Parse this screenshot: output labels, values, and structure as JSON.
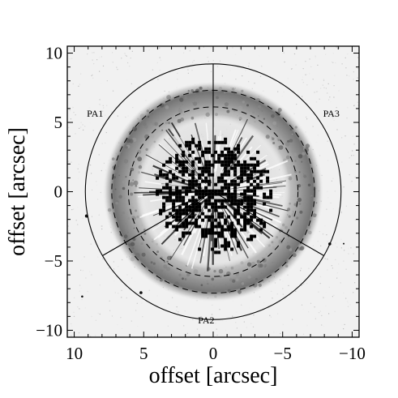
{
  "chart_data": {
    "type": "image",
    "xlabel": "offset [arcsec]",
    "ylabel": "offset [arcsec]",
    "xlim": [
      10.5,
      -10.5
    ],
    "ylim": [
      -10.5,
      10.5
    ],
    "xticks": [
      10,
      5,
      0,
      -5,
      -10
    ],
    "yticks": [
      10,
      5,
      0,
      -5,
      -10
    ],
    "xtick_labels": [
      "10",
      "5",
      "0",
      "−5",
      "−10"
    ],
    "ytick_labels": [
      "10",
      "5",
      "0",
      "−5",
      "−10"
    ],
    "outer_circle_radius": 9.2,
    "dashed_circle_radii": [
      7.3,
      6.1
    ],
    "sector_boundary_angles_deg": [
      90,
      210,
      330
    ],
    "region_labels": [
      {
        "text": "PA1",
        "x": 8.5,
        "y": 5.4
      },
      {
        "text": "PA2",
        "x": 0.5,
        "y": -9.5
      },
      {
        "text": "PA3",
        "x": -8.5,
        "y": 5.4
      }
    ],
    "nebula_shell": {
      "inner_radius": 5.5,
      "outer_radius": 7.6
    },
    "grid": false,
    "colormap": "inverted grayscale"
  }
}
